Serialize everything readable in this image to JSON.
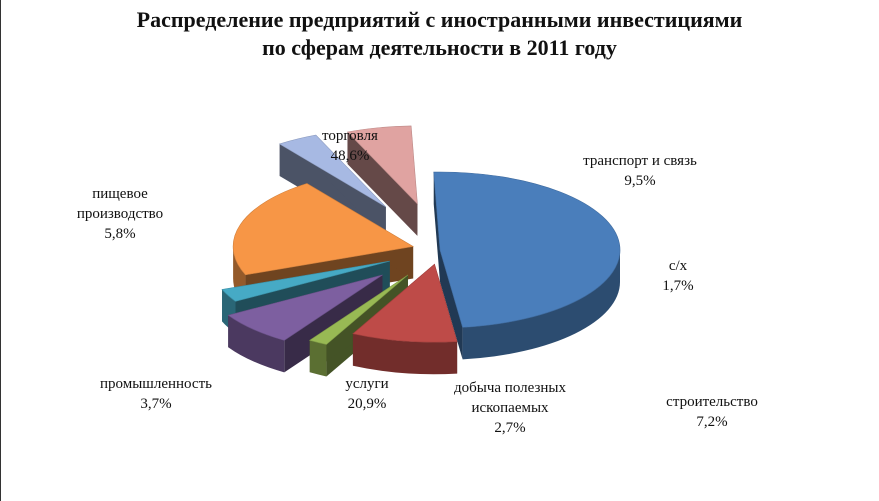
{
  "title": [
    "Распределение предприятий с иностранными инвестициями",
    "по сферам деятельности в 2011 году"
  ],
  "chart_data": {
    "type": "pie",
    "title": "Распределение предприятий с иностранными инвестициями по сферам деятельности в 2011 году",
    "style": "3d-exploded",
    "slices": [
      {
        "label": [
          "торговля"
        ],
        "value": 48.6,
        "value_text": "48,6%",
        "color": "#4a7ebb"
      },
      {
        "label": [
          "транспорт и связь"
        ],
        "value": 9.5,
        "value_text": "9,5%",
        "color": "#be4b48"
      },
      {
        "label": [
          "с/х"
        ],
        "value": 1.7,
        "value_text": "1,7%",
        "color": "#98b954"
      },
      {
        "label": [
          "строительство"
        ],
        "value": 7.2,
        "value_text": "7,2%",
        "color": "#7d5fa0"
      },
      {
        "label": [
          "добыча полезных",
          "ископаемых"
        ],
        "value": 2.7,
        "value_text": "2,7%",
        "color": "#46aac5"
      },
      {
        "label": [
          "услуги"
        ],
        "value": 20.9,
        "value_text": "20,9%",
        "color": "#f79646"
      },
      {
        "label": [
          "промышленность"
        ],
        "value": 3.7,
        "value_text": "3,7%",
        "color": "#a7b9e3"
      },
      {
        "label": [
          "пищевое",
          "производство"
        ],
        "value": 5.8,
        "value_text": "5,8%",
        "color": "#e0a3a1"
      }
    ]
  }
}
